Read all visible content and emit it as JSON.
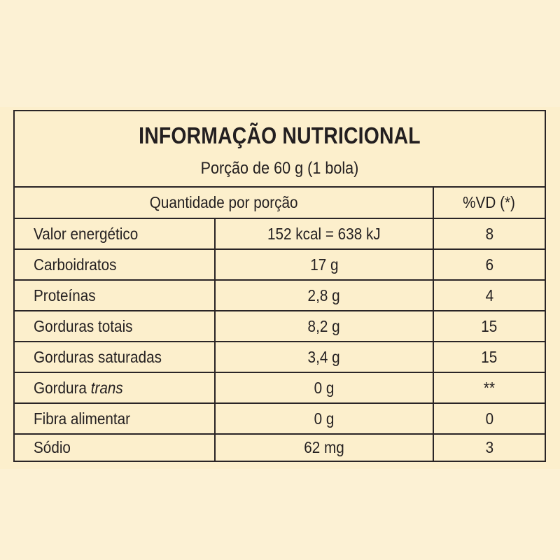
{
  "label": {
    "title": "INFORMAÇÃO NUTRICIONAL",
    "serving": "Porção de 60 g (1 bola)"
  },
  "columns": {
    "quantity_header": "Quantidade por porção",
    "dv_header": "%VD (*)"
  },
  "rows": [
    {
      "name": "Valor energético",
      "name_suffix": "",
      "amount": "152 kcal = 638 kJ",
      "dv": "8"
    },
    {
      "name": "Carboidratos",
      "name_suffix": "",
      "amount": "17 g",
      "dv": "6"
    },
    {
      "name": "Proteínas",
      "name_suffix": "",
      "amount": "2,8 g",
      "dv": "4"
    },
    {
      "name": "Gorduras totais",
      "name_suffix": "",
      "amount": "8,2 g",
      "dv": "15"
    },
    {
      "name": "Gorduras saturadas",
      "name_suffix": "",
      "amount": "3,4 g",
      "dv": "15"
    },
    {
      "name": "Gordura ",
      "name_suffix": "trans",
      "amount": "0 g",
      "dv": "**"
    },
    {
      "name": "Fibra alimentar",
      "name_suffix": "",
      "amount": "0 g",
      "dv": "0"
    },
    {
      "name": "Sódio",
      "name_suffix": "",
      "amount": "62 mg",
      "dv": "3"
    }
  ]
}
